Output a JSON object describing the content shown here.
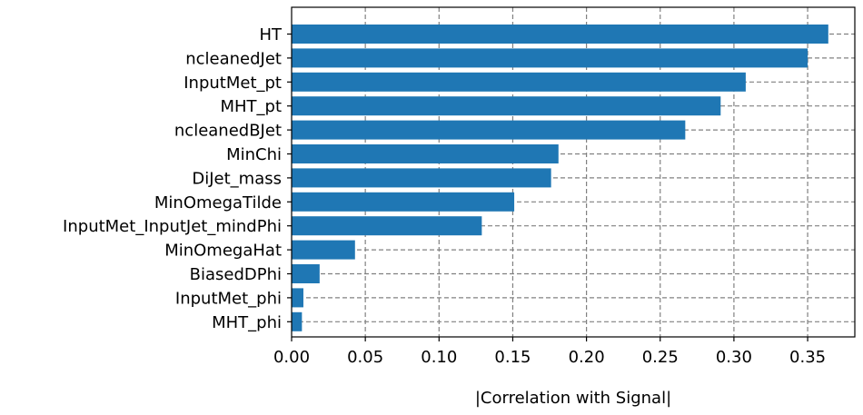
{
  "chart_data": {
    "type": "bar",
    "orientation": "horizontal",
    "categories": [
      "HT",
      "ncleanedJet",
      "InputMet_pt",
      "MHT_pt",
      "ncleanedBJet",
      "MinChi",
      "DiJet_mass",
      "MinOmegaTilde",
      "InputMet_InputJet_mindPhi",
      "MinOmegaHat",
      "BiasedDPhi",
      "InputMet_phi",
      "MHT_phi"
    ],
    "values": [
      0.364,
      0.35,
      0.308,
      0.291,
      0.267,
      0.181,
      0.176,
      0.151,
      0.129,
      0.043,
      0.019,
      0.008,
      0.007
    ],
    "xlabel": "|Correlation with Signal|",
    "ylabel": "",
    "title": "",
    "xlim": [
      0,
      0.382
    ],
    "xticks": [
      0.0,
      0.05,
      0.1,
      0.15,
      0.2,
      0.25,
      0.3,
      0.35
    ],
    "xtick_labels": [
      "0.00",
      "0.05",
      "0.10",
      "0.15",
      "0.20",
      "0.25",
      "0.30",
      "0.35"
    ],
    "grid": true,
    "grid_style": "dashed",
    "bar_color": "#1f77b4",
    "grid_color": "#808080"
  }
}
